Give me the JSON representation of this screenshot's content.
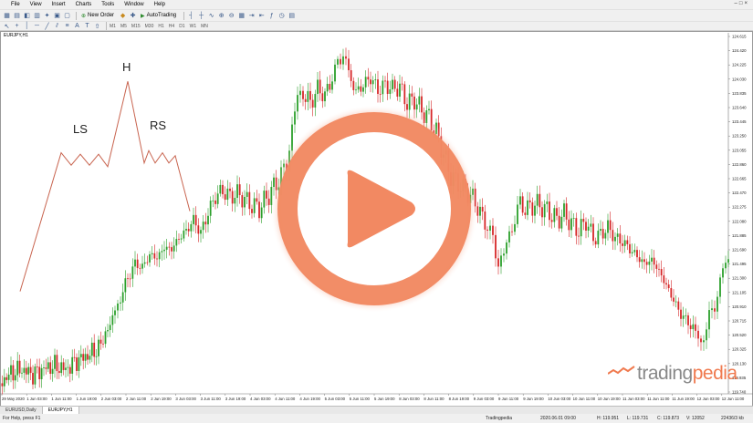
{
  "menu": [
    "File",
    "View",
    "Insert",
    "Charts",
    "Tools",
    "Window",
    "Help"
  ],
  "toolbar": {
    "new_order": "New Order",
    "autotrading": "AutoTrading"
  },
  "timeframes": [
    "M1",
    "M5",
    "M15",
    "M30",
    "H1",
    "H4",
    "D1",
    "W1",
    "MN"
  ],
  "chart": {
    "title": "EURJPY,H1",
    "annotations": {
      "left_shoulder": "LS",
      "head": "H",
      "right_shoulder": "RS"
    }
  },
  "chart_data": {
    "type": "candlestick",
    "symbol": "EURJPY,H1",
    "y_ticks": [
      "124.615",
      "124.420",
      "124.225",
      "124.030",
      "123.835",
      "123.640",
      "123.445",
      "123.250",
      "123.055",
      "122.860",
      "122.665",
      "122.470",
      "122.275",
      "122.080",
      "121.885",
      "121.690",
      "121.495",
      "121.300",
      "121.105",
      "120.910",
      "120.715",
      "120.520",
      "120.325",
      "120.130",
      "119.935",
      "119.740"
    ],
    "x_ticks": [
      "29 May 2020",
      "1 Jun 03:00",
      "1 Jun 11:00",
      "1 Jun 19:00",
      "2 Jun 03:00",
      "2 Jun 11:00",
      "2 Jun 19:00",
      "3 Jun 03:00",
      "3 Jun 11:00",
      "3 Jun 19:00",
      "4 Jun 03:00",
      "4 Jun 11:00",
      "4 Jun 19:00",
      "5 Jun 03:00",
      "5 Jun 11:00",
      "5 Jun 19:00",
      "8 Jun 03:00",
      "8 Jun 11:00",
      "8 Jun 19:00",
      "9 Jun 03:00",
      "9 Jun 11:00",
      "9 Jun 19:00",
      "10 Jun 03:00",
      "10 Jun 11:00",
      "10 Jun 19:00",
      "11 Jun 03:00",
      "11 Jun 11:00",
      "11 Jun 19:00",
      "12 Jun 03:00",
      "12 Jun 11:00"
    ],
    "ylim": [
      119.74,
      124.615
    ],
    "up_color": "#2ca02c",
    "down_color": "#d62728",
    "pattern_color": "#c8644f",
    "close_path": [
      {
        "x": 0,
        "y": 119.86
      },
      {
        "x": 12,
        "y": 120.0
      },
      {
        "x": 24,
        "y": 120.05
      },
      {
        "x": 36,
        "y": 119.98
      },
      {
        "x": 48,
        "y": 120.06
      },
      {
        "x": 60,
        "y": 120.1
      },
      {
        "x": 72,
        "y": 120.05
      },
      {
        "x": 84,
        "y": 120.17
      },
      {
        "x": 96,
        "y": 120.24
      },
      {
        "x": 108,
        "y": 120.34
      },
      {
        "x": 118,
        "y": 120.6
      },
      {
        "x": 126,
        "y": 120.85
      },
      {
        "x": 132,
        "y": 121.05
      },
      {
        "x": 140,
        "y": 121.3
      },
      {
        "x": 148,
        "y": 121.5
      },
      {
        "x": 156,
        "y": 121.45
      },
      {
        "x": 164,
        "y": 121.62
      },
      {
        "x": 172,
        "y": 121.58
      },
      {
        "x": 180,
        "y": 121.72
      },
      {
        "x": 188,
        "y": 121.7
      },
      {
        "x": 196,
        "y": 121.85
      },
      {
        "x": 204,
        "y": 121.95
      },
      {
        "x": 212,
        "y": 122.1
      },
      {
        "x": 220,
        "y": 121.92
      },
      {
        "x": 228,
        "y": 122.2
      },
      {
        "x": 236,
        "y": 122.42
      },
      {
        "x": 244,
        "y": 122.5
      },
      {
        "x": 252,
        "y": 122.42
      },
      {
        "x": 260,
        "y": 122.46
      },
      {
        "x": 268,
        "y": 122.38
      },
      {
        "x": 276,
        "y": 122.3
      },
      {
        "x": 284,
        "y": 122.26
      },
      {
        "x": 292,
        "y": 122.4
      },
      {
        "x": 300,
        "y": 122.55
      },
      {
        "x": 308,
        "y": 122.7
      },
      {
        "x": 314,
        "y": 122.85
      },
      {
        "x": 320,
        "y": 123.4
      },
      {
        "x": 326,
        "y": 123.75
      },
      {
        "x": 332,
        "y": 123.85
      },
      {
        "x": 340,
        "y": 123.7
      },
      {
        "x": 348,
        "y": 123.9
      },
      {
        "x": 356,
        "y": 123.8
      },
      {
        "x": 364,
        "y": 124.05
      },
      {
        "x": 370,
        "y": 124.2
      },
      {
        "x": 376,
        "y": 124.45
      },
      {
        "x": 382,
        "y": 124.1
      },
      {
        "x": 390,
        "y": 123.85
      },
      {
        "x": 398,
        "y": 123.95
      },
      {
        "x": 406,
        "y": 124.05
      },
      {
        "x": 414,
        "y": 123.88
      },
      {
        "x": 422,
        "y": 123.95
      },
      {
        "x": 430,
        "y": 123.9
      },
      {
        "x": 438,
        "y": 123.92
      },
      {
        "x": 446,
        "y": 123.7
      },
      {
        "x": 454,
        "y": 123.75
      },
      {
        "x": 462,
        "y": 123.6
      },
      {
        "x": 470,
        "y": 123.5
      },
      {
        "x": 478,
        "y": 123.3
      },
      {
        "x": 486,
        "y": 123.0
      },
      {
        "x": 494,
        "y": 122.7
      },
      {
        "x": 502,
        "y": 122.6
      },
      {
        "x": 510,
        "y": 122.5
      },
      {
        "x": 518,
        "y": 122.4
      },
      {
        "x": 526,
        "y": 122.2
      },
      {
        "x": 534,
        "y": 122.0
      },
      {
        "x": 540,
        "y": 121.8
      },
      {
        "x": 546,
        "y": 121.55
      },
      {
        "x": 552,
        "y": 121.6
      },
      {
        "x": 558,
        "y": 121.9
      },
      {
        "x": 564,
        "y": 122.15
      },
      {
        "x": 570,
        "y": 122.3
      },
      {
        "x": 578,
        "y": 122.25
      },
      {
        "x": 586,
        "y": 122.32
      },
      {
        "x": 594,
        "y": 122.28
      },
      {
        "x": 602,
        "y": 122.2
      },
      {
        "x": 610,
        "y": 122.1
      },
      {
        "x": 618,
        "y": 122.18
      },
      {
        "x": 626,
        "y": 122.05
      },
      {
        "x": 634,
        "y": 121.95
      },
      {
        "x": 642,
        "y": 122.08
      },
      {
        "x": 650,
        "y": 121.85
      },
      {
        "x": 658,
        "y": 121.9
      },
      {
        "x": 666,
        "y": 122.0
      },
      {
        "x": 674,
        "y": 121.85
      },
      {
        "x": 682,
        "y": 121.8
      },
      {
        "x": 690,
        "y": 121.7
      },
      {
        "x": 698,
        "y": 121.6
      },
      {
        "x": 706,
        "y": 121.5
      },
      {
        "x": 714,
        "y": 121.55
      },
      {
        "x": 722,
        "y": 121.4
      },
      {
        "x": 730,
        "y": 121.2
      },
      {
        "x": 738,
        "y": 121.0
      },
      {
        "x": 746,
        "y": 120.8
      },
      {
        "x": 754,
        "y": 120.7
      },
      {
        "x": 762,
        "y": 120.55
      },
      {
        "x": 768,
        "y": 120.45
      },
      {
        "x": 774,
        "y": 120.6
      },
      {
        "x": 780,
        "y": 120.85
      },
      {
        "x": 786,
        "y": 121.1
      },
      {
        "x": 792,
        "y": 121.4
      },
      {
        "x": 798,
        "y": 121.55
      }
    ],
    "pattern_path": [
      {
        "x": 22,
        "y": 121.12
      },
      {
        "x": 67,
        "y": 123.02
      },
      {
        "x": 78,
        "y": 122.85
      },
      {
        "x": 88,
        "y": 123.0
      },
      {
        "x": 98,
        "y": 122.85
      },
      {
        "x": 108,
        "y": 123.0
      },
      {
        "x": 118,
        "y": 122.83
      },
      {
        "x": 140,
        "y": 124.0
      },
      {
        "x": 158,
        "y": 122.88
      },
      {
        "x": 163,
        "y": 123.05
      },
      {
        "x": 170,
        "y": 122.88
      },
      {
        "x": 178,
        "y": 123.02
      },
      {
        "x": 185,
        "y": 122.88
      },
      {
        "x": 192,
        "y": 122.98
      },
      {
        "x": 208,
        "y": 122.22
      }
    ]
  },
  "tabs": [
    "EURUSD,Daily",
    "EURJPY,H1"
  ],
  "status": {
    "help": "For Help, press F1",
    "profile": "Tradingpedia",
    "datetime": "2020.06.01 09:00",
    "high": "H: 119.951",
    "low": "L: 119.731",
    "close": "C: 119.873",
    "volume": "V: 12052",
    "traffic": "22436/3 kb"
  },
  "brand": {
    "name_a": "trading",
    "name_b": "pedia"
  }
}
